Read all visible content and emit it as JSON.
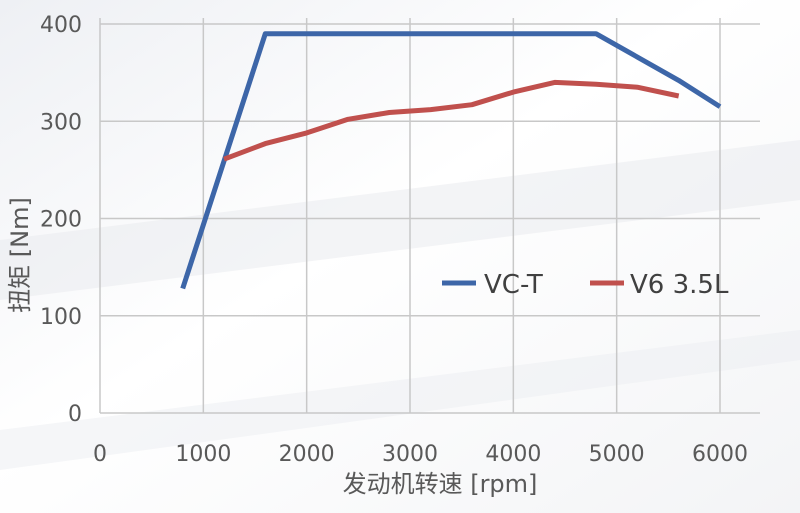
{
  "chart_data": {
    "type": "line",
    "title": "",
    "xlabel": "发动机转速 [rpm]",
    "ylabel": "扭矩 [Nm]",
    "xlim": [
      0,
      6000
    ],
    "ylim": [
      0,
      400
    ],
    "xticks": [
      "0",
      "1000",
      "2000",
      "3000",
      "4000",
      "5000",
      "6000"
    ],
    "yticks": [
      "0",
      "100",
      "200",
      "300",
      "400"
    ],
    "grid": true,
    "legend": "right",
    "series": [
      {
        "name": "VC-T",
        "color": "#3d66a8",
        "points": [
          [
            800,
            128
          ],
          [
            1600,
            390
          ],
          [
            4800,
            390
          ],
          [
            5600,
            342
          ],
          [
            6000,
            315
          ]
        ]
      },
      {
        "name": "V6 3.5L",
        "color": "#c0504d",
        "points": [
          [
            1200,
            261
          ],
          [
            1600,
            277
          ],
          [
            2000,
            288
          ],
          [
            2400,
            302
          ],
          [
            2800,
            309
          ],
          [
            3200,
            312
          ],
          [
            3600,
            317
          ],
          [
            4000,
            330
          ],
          [
            4400,
            340
          ],
          [
            4800,
            338
          ],
          [
            5200,
            335
          ],
          [
            5600,
            326
          ]
        ]
      }
    ]
  }
}
